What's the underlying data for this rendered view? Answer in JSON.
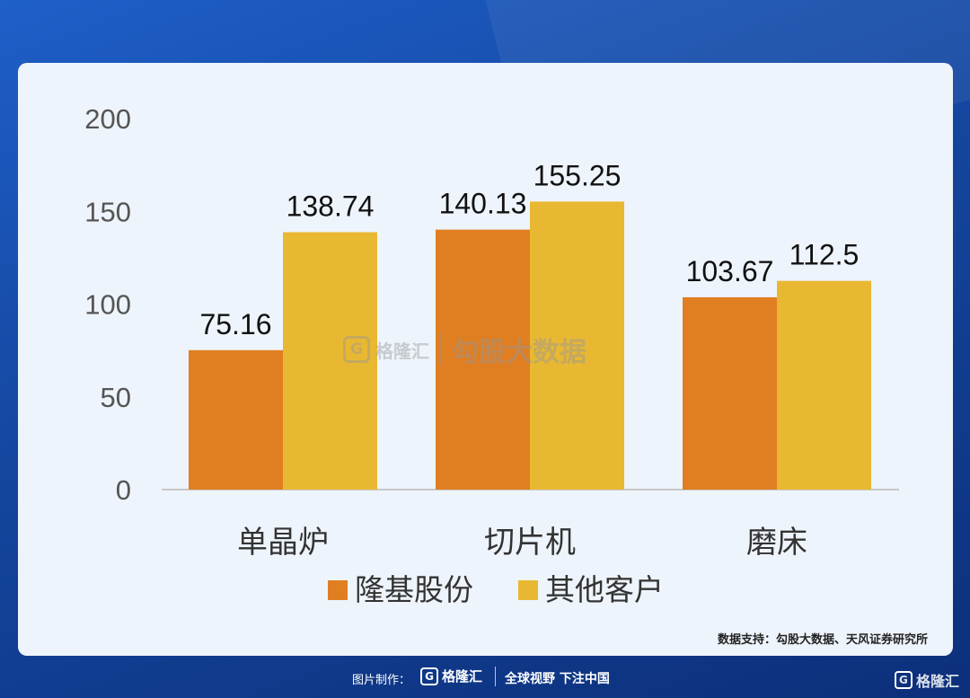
{
  "chart_data": {
    "type": "bar",
    "categories": [
      "单晶炉",
      "切片机",
      "磨床"
    ],
    "series": [
      {
        "name": "隆基股份",
        "values": [
          75.16,
          140.13,
          103.67
        ],
        "color": "#e07e22"
      },
      {
        "name": "其他客户",
        "values": [
          138.74,
          155.25,
          112.5
        ],
        "color": "#e9b832"
      }
    ],
    "data_labels": [
      [
        "75.16",
        "140.13",
        "103.67"
      ],
      [
        "138.74",
        "155.25",
        "112.5"
      ]
    ],
    "yticks": [
      "0",
      "50",
      "100",
      "150",
      "200"
    ],
    "ylim": [
      0,
      200
    ],
    "xlabel": "",
    "ylabel": "",
    "legend_position": "bottom-center",
    "grid": false
  },
  "source_note": "数据支持：勾股大数据、天风证券研究所",
  "watermark": {
    "mark": "G",
    "brand": "格隆汇",
    "text": "勾股大数据"
  },
  "footer": {
    "credit": "图片制作：",
    "logo_mark": "G",
    "logo_text": "格隆汇",
    "slogan": "全球视野 下注中国",
    "corner_logo_text": "格隆汇"
  }
}
